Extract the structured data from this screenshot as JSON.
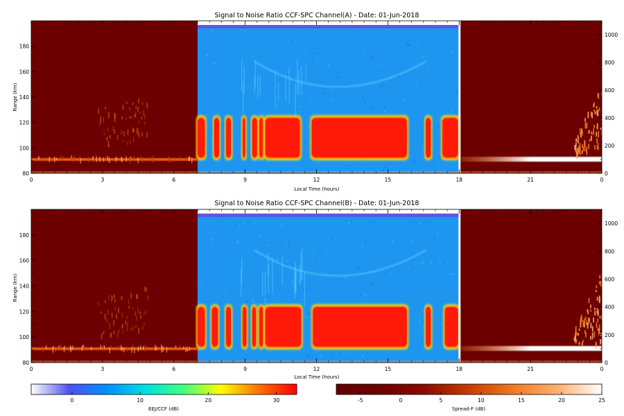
{
  "chart_data": [
    {
      "type": "heatmap",
      "title": "Signal to Noise Ratio CCF-SPC Channel(A) - Date: 01-Jun-2018",
      "xlabel": "Local Time (hours)",
      "ylabel": "Range (km)",
      "y2label": "",
      "xlim": [
        0,
        24
      ],
      "ylim": [
        80,
        200
      ],
      "y2lim": [
        0,
        1100
      ],
      "x_ticks": [
        "0",
        "3",
        "6",
        "9",
        "12",
        "15",
        "18",
        "21",
        "0"
      ],
      "x_tick_values": [
        0,
        3,
        6,
        9,
        12,
        15,
        18,
        21,
        24
      ],
      "y_ticks": [
        "80",
        "100",
        "120",
        "140",
        "160",
        "180"
      ],
      "y_tick_values": [
        80,
        100,
        120,
        140,
        160,
        180
      ],
      "y2_ticks": [
        "0",
        "200",
        "400",
        "600",
        "800",
        "1000"
      ],
      "y2_tick_values": [
        0,
        200,
        400,
        600,
        800,
        1000
      ],
      "regions": [
        {
          "name": "Spread-F",
          "x_range": [
            0,
            7
          ]
        },
        {
          "name": "EEJ/CCF",
          "x_range": [
            7,
            18
          ]
        },
        {
          "name": "Spread-F",
          "x_range": [
            18,
            24
          ]
        }
      ],
      "eej_echo_segments": [
        [
          7.0,
          7.3
        ],
        [
          7.7,
          7.9
        ],
        [
          8.2,
          8.4
        ],
        [
          8.9,
          9.0
        ],
        [
          9.3,
          9.5
        ],
        [
          9.6,
          9.75
        ],
        [
          9.85,
          11.3
        ],
        [
          11.8,
          15.8
        ],
        [
          16.6,
          16.8
        ],
        [
          17.3,
          17.95
        ]
      ],
      "eej_echo_range_km": [
        92,
        124
      ],
      "grid": false
    },
    {
      "type": "heatmap",
      "title": "Signal to Noise Ratio CCF-SPC Channel(B) - Date: 01-Jun-2018",
      "xlabel": "Local Time (hours)",
      "ylabel": "Range (km)",
      "y2label": "",
      "xlim": [
        0,
        24
      ],
      "ylim": [
        80,
        200
      ],
      "y2lim": [
        0,
        1100
      ],
      "x_ticks": [
        "0",
        "3",
        "6",
        "9",
        "12",
        "15",
        "18",
        "21",
        "0"
      ],
      "x_tick_values": [
        0,
        3,
        6,
        9,
        12,
        15,
        18,
        21,
        24
      ],
      "y_ticks": [
        "80",
        "100",
        "120",
        "140",
        "160",
        "180"
      ],
      "y_tick_values": [
        80,
        100,
        120,
        140,
        160,
        180
      ],
      "y2_ticks": [
        "0",
        "200",
        "400",
        "600",
        "800",
        "1000"
      ],
      "y2_tick_values": [
        0,
        200,
        400,
        600,
        800,
        1000
      ],
      "regions": [
        {
          "name": "Spread-F",
          "x_range": [
            0,
            7
          ]
        },
        {
          "name": "EEJ/CCF",
          "x_range": [
            7,
            18
          ]
        },
        {
          "name": "Spread-F",
          "x_range": [
            18,
            24
          ]
        }
      ],
      "eej_echo_segments": [
        [
          7.0,
          7.3
        ],
        [
          7.6,
          7.85
        ],
        [
          8.2,
          8.4
        ],
        [
          8.9,
          9.05
        ],
        [
          9.3,
          9.45
        ],
        [
          9.6,
          9.75
        ],
        [
          9.85,
          11.35
        ],
        [
          11.85,
          15.8
        ],
        [
          16.6,
          16.8
        ],
        [
          17.4,
          17.95
        ]
      ],
      "eej_echo_range_km": [
        92,
        124
      ],
      "grid": false
    }
  ],
  "colorbars": [
    {
      "label": "EEJ/CCF (dB)",
      "range": [
        -6,
        33
      ],
      "ticks": [
        "0",
        "10",
        "20",
        "30"
      ],
      "tick_values": [
        0,
        10,
        20,
        30
      ],
      "colors": [
        "#ffffff",
        "#5050f0",
        "#0090ff",
        "#00e0e0",
        "#40ff80",
        "#ffff00",
        "#ff7000",
        "#ff0000"
      ]
    },
    {
      "label": "Spread-F (dB)",
      "range": [
        -8,
        25
      ],
      "ticks": [
        "-5",
        "0",
        "5",
        "10",
        "15",
        "20",
        "25"
      ],
      "tick_values": [
        -5,
        0,
        5,
        10,
        15,
        20,
        25
      ],
      "colors": [
        "#640000",
        "#6e0000",
        "#8c0a00",
        "#c83c00",
        "#f07a20",
        "#ffb070",
        "#ffffff"
      ]
    }
  ],
  "colors": {
    "spread_f_background": "#6c0000",
    "eej_background": "#1e96f0",
    "eej_echo": "#ff1a0a",
    "top_band": "#5a5ae0"
  }
}
